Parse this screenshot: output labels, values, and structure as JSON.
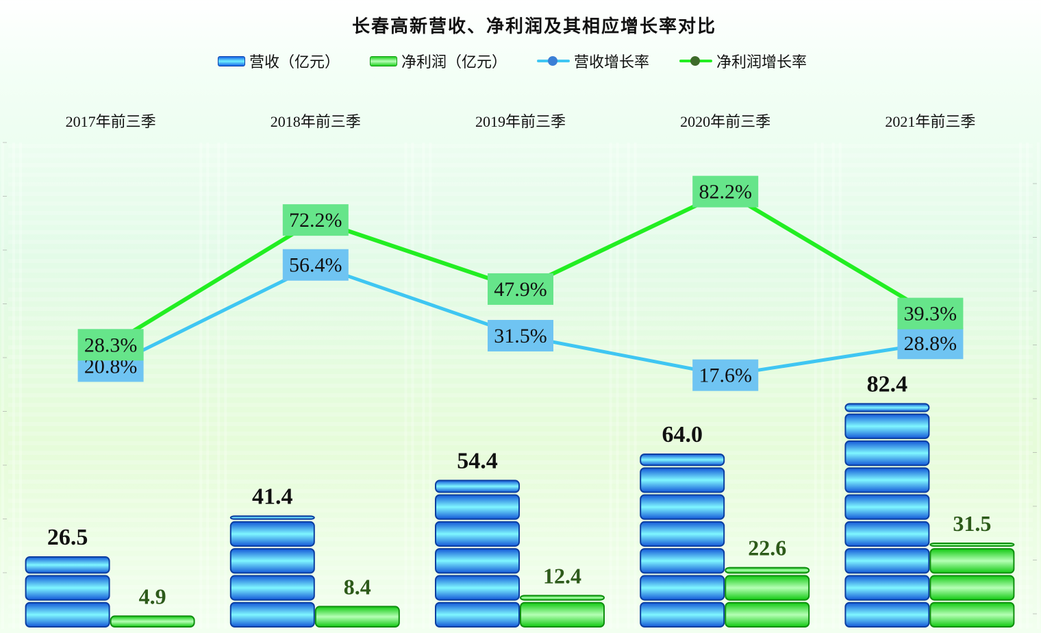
{
  "chart_data": {
    "type": "bar",
    "title": "长春高新营收、净利润及其相应增长率对比",
    "categories": [
      "2017年前三季",
      "2018年前三季",
      "2019年前三季",
      "2020年前三季",
      "2021年前三季"
    ],
    "series": [
      {
        "name": "营收（亿元）",
        "kind": "bar",
        "values": [
          26.5,
          41.4,
          54.4,
          64.0,
          82.4
        ],
        "labels": [
          "26.5",
          "41.4",
          "54.4",
          "64.0",
          "82.4"
        ],
        "color": "#1a6fe8"
      },
      {
        "name": "净利润（亿元）",
        "kind": "bar",
        "values": [
          4.9,
          8.4,
          12.4,
          22.6,
          31.5
        ],
        "labels": [
          "4.9",
          "8.4",
          "12.4",
          "22.6",
          "31.5"
        ],
        "color": "#22dd22"
      },
      {
        "name": "营收增长率",
        "kind": "line",
        "values": [
          20.8,
          56.4,
          31.5,
          17.6,
          28.8
        ],
        "labels": [
          "20.8%",
          "56.4%",
          "31.5%",
          "17.6%",
          "28.8%"
        ],
        "color": "#3fc6f2"
      },
      {
        "name": "净利润增长率",
        "kind": "line",
        "values": [
          28.3,
          72.2,
          47.9,
          82.2,
          39.3
        ],
        "labels": [
          "28.3%",
          "72.2%",
          "47.9%",
          "82.2%",
          "39.3%"
        ],
        "color": "#22ee22"
      }
    ],
    "legend_position": "top",
    "category_labels_position": "top",
    "grid": false
  },
  "colors": {
    "revenue_bar": "#1a6fe8",
    "profit_bar": "#22dd22",
    "revenue_rate_line": "#3fc6f2",
    "revenue_rate_label_bg": "#6fc4f2",
    "profit_rate_line": "#22ee22",
    "profit_rate_label_bg": "#66e58a",
    "profit_label_text": "#2d5a1a"
  }
}
